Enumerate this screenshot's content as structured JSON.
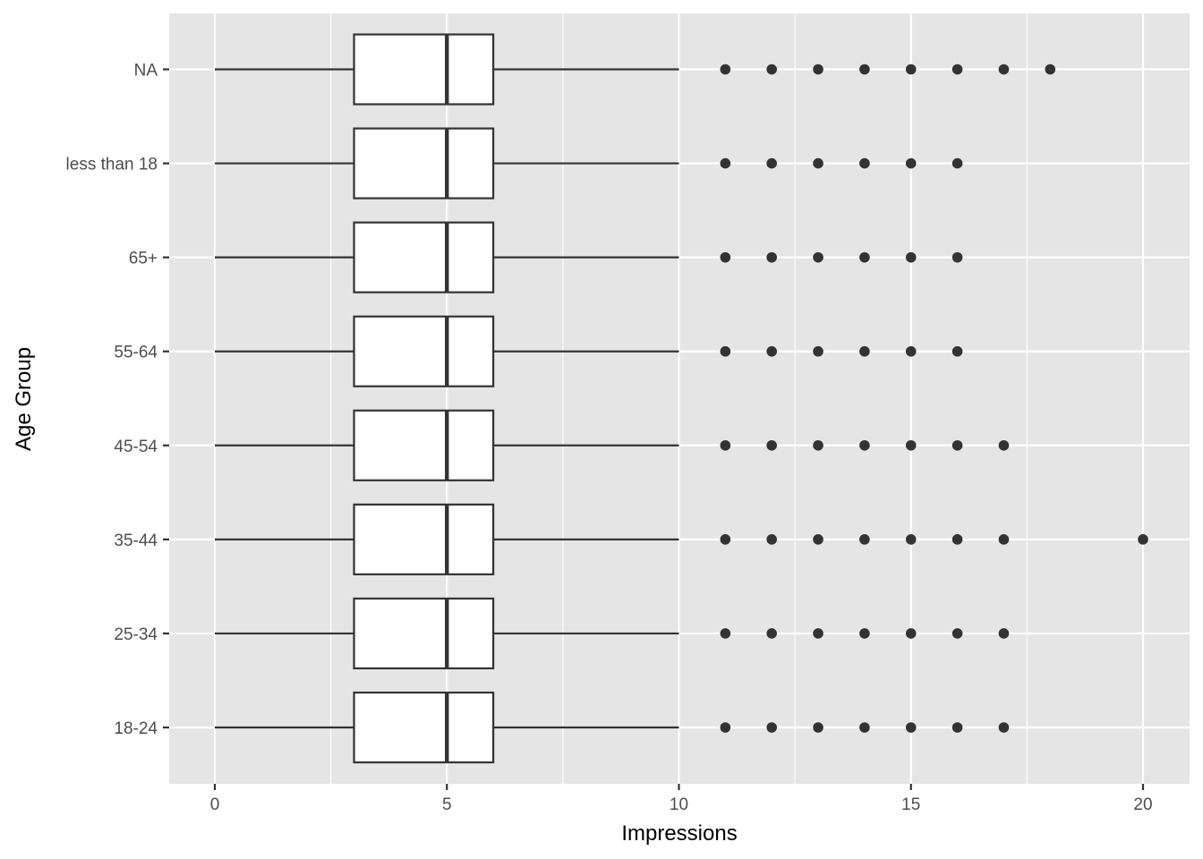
{
  "chart_data": {
    "type": "boxplot",
    "orientation": "horizontal",
    "xlabel": "Impressions",
    "ylabel": "Age Group",
    "xlim": [
      -1,
      21
    ],
    "x_ticks": [
      0,
      5,
      10,
      15,
      20
    ],
    "x_tick_labels": [
      "0",
      "5",
      "10",
      "15",
      "20"
    ],
    "grid": true,
    "panel_background": "#e5e5e5",
    "grid_color": "#ffffff",
    "box_fill": "#ffffff",
    "line_color": "#333333",
    "categories": [
      "18-24",
      "25-34",
      "35-44",
      "45-54",
      "55-64",
      "65+",
      "less than 18",
      "NA"
    ],
    "boxes": [
      {
        "label": "18-24",
        "min": 0,
        "q1": 3,
        "median": 5,
        "q3": 6,
        "max": 10,
        "outliers": [
          11,
          12,
          13,
          14,
          15,
          16,
          17
        ]
      },
      {
        "label": "25-34",
        "min": 0,
        "q1": 3,
        "median": 5,
        "q3": 6,
        "max": 10,
        "outliers": [
          11,
          12,
          13,
          14,
          15,
          16,
          17
        ]
      },
      {
        "label": "35-44",
        "min": 0,
        "q1": 3,
        "median": 5,
        "q3": 6,
        "max": 10,
        "outliers": [
          11,
          12,
          13,
          14,
          15,
          16,
          17,
          20
        ]
      },
      {
        "label": "45-54",
        "min": 0,
        "q1": 3,
        "median": 5,
        "q3": 6,
        "max": 10,
        "outliers": [
          11,
          12,
          13,
          14,
          15,
          16,
          17
        ]
      },
      {
        "label": "55-64",
        "min": 0,
        "q1": 3,
        "median": 5,
        "q3": 6,
        "max": 10,
        "outliers": [
          11,
          12,
          13,
          14,
          15,
          16
        ]
      },
      {
        "label": "65+",
        "min": 0,
        "q1": 3,
        "median": 5,
        "q3": 6,
        "max": 10,
        "outliers": [
          11,
          12,
          13,
          14,
          15,
          16
        ]
      },
      {
        "label": "less than 18",
        "min": 0,
        "q1": 3,
        "median": 5,
        "q3": 6,
        "max": 10,
        "outliers": [
          11,
          12,
          13,
          14,
          15,
          16
        ]
      },
      {
        "label": "NA",
        "min": 0,
        "q1": 3,
        "median": 5,
        "q3": 6,
        "max": 10,
        "outliers": [
          11,
          12,
          13,
          14,
          15,
          16,
          17,
          18
        ]
      }
    ]
  }
}
